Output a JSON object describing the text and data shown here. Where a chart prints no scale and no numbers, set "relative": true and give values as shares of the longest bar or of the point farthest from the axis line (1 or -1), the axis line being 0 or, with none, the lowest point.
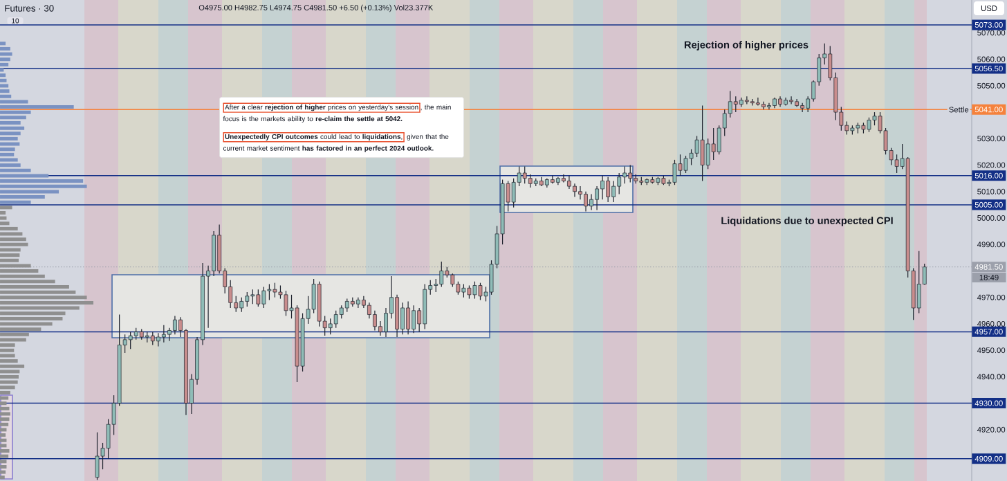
{
  "chart_data": [
    {
      "type": "candlestick",
      "title": "Futures · 30",
      "subtitle": "O4975.00 H4982.75 L4974.75 C4981.50 +6.50 (+0.13%) Vol23.377K",
      "categories": [
        null,
        null,
        null,
        null,
        null,
        null,
        null,
        null,
        null,
        null,
        null,
        null,
        null,
        null,
        null,
        null,
        null,
        null,
        null,
        null,
        null,
        null,
        null,
        null,
        null,
        null,
        null,
        null,
        null,
        null,
        null,
        null,
        null,
        null,
        null,
        null,
        null,
        null,
        null,
        null,
        null,
        null,
        null,
        null,
        null,
        null,
        null,
        null,
        null,
        null,
        null,
        null,
        null,
        null,
        null,
        null,
        null,
        null,
        null,
        null,
        null,
        null,
        null,
        null,
        null,
        null,
        null,
        null,
        null,
        null,
        null,
        null,
        null,
        null,
        null,
        null,
        null,
        null,
        null,
        null,
        null,
        null,
        null,
        null,
        null,
        null,
        null,
        null,
        null,
        null,
        null,
        null,
        null,
        null,
        null,
        null,
        null,
        null,
        null,
        null,
        null,
        null,
        null,
        null,
        null,
        null,
        null,
        null,
        null,
        null,
        null,
        null,
        null,
        null,
        null,
        null,
        null,
        null,
        null,
        null,
        null,
        null,
        null,
        null,
        null,
        null,
        null,
        null,
        null,
        null,
        null,
        null,
        null,
        null,
        null,
        null,
        null,
        null,
        null,
        null,
        null,
        null,
        null,
        null,
        null,
        null,
        null,
        null,
        null,
        null,
        null,
        null,
        null,
        null,
        null,
        null,
        null,
        null,
        null,
        null,
        null,
        null,
        null,
        null,
        null,
        null,
        null,
        null,
        null,
        null,
        null,
        null,
        null,
        null,
        null
      ],
      "ohlc": [
        null,
        null,
        null,
        null,
        null,
        null,
        null,
        null,
        null,
        null,
        null,
        null,
        null,
        null,
        null,
        null,
        null,
        [
          4902,
          4919,
          4901,
          4910
        ],
        [
          4910,
          4915,
          4905,
          4913
        ],
        [
          4913,
          4924,
          4909,
          4922
        ],
        [
          4922,
          4933,
          4918,
          4930
        ],
        [
          4930,
          4963.5,
          4929,
          4952
        ],
        [
          4952,
          4956,
          4949,
          4954
        ],
        [
          4954,
          4957,
          4950.5,
          4955.5
        ],
        [
          4955.5,
          4958.5,
          4954,
          4957
        ],
        [
          4957,
          4958,
          4954,
          4955
        ],
        [
          4955,
          4957,
          4953,
          4955.5
        ],
        [
          4955.5,
          4957,
          4952,
          4953.5
        ],
        [
          4953.5,
          4956.5,
          4951.5,
          4955
        ],
        [
          4955,
          4959.5,
          4953,
          4956
        ],
        [
          4956,
          4958.5,
          4953.5,
          4957.5
        ],
        [
          4957.5,
          4963,
          4956,
          4961.5
        ],
        [
          4961.5,
          4962.5,
          4955,
          4957.5
        ],
        [
          4957.5,
          4958,
          4925.5,
          4930
        ],
        [
          4930,
          4941,
          4926,
          4939
        ],
        [
          4939,
          4955,
          4937,
          4954
        ],
        [
          4954,
          4983,
          4952,
          4978
        ],
        [
          4978,
          4982,
          4958.5,
          4980
        ],
        [
          4980,
          4995,
          4978,
          4993.5
        ],
        [
          4993.5,
          4997.5,
          4979,
          4980
        ],
        [
          4980,
          4981,
          4971.5,
          4974
        ],
        [
          4974,
          4976.5,
          4966,
          4968
        ],
        [
          4968,
          4970.5,
          4964.5,
          4966
        ],
        [
          4966,
          4970,
          4964.5,
          4968.5
        ],
        [
          4968.5,
          4972,
          4966.5,
          4970.5
        ],
        [
          4970.5,
          4973,
          4967.5,
          4971
        ],
        [
          4971,
          4973,
          4966.5,
          4967.5
        ],
        [
          4967.5,
          4974,
          4966,
          4972.5
        ],
        [
          4972.5,
          4975,
          4969,
          4973
        ],
        [
          4973,
          4975.5,
          4970,
          4972
        ],
        [
          4972,
          4974.5,
          4969.5,
          4971
        ],
        [
          4971,
          4972.5,
          4963,
          4965
        ],
        [
          4965,
          4971,
          4962,
          4966
        ],
        [
          4966,
          4967,
          4938,
          4944
        ],
        [
          4944,
          4964,
          4942,
          4962
        ],
        [
          4962,
          4970.5,
          4960,
          4965.5
        ],
        [
          4965.5,
          4977,
          4964,
          4975
        ],
        [
          4975,
          4976,
          4959,
          4961
        ],
        [
          4961,
          4963,
          4955.5,
          4958.5
        ],
        [
          4958.5,
          4962,
          4956,
          4960
        ],
        [
          4960,
          4965,
          4958.5,
          4963.5
        ],
        [
          4963.5,
          4967,
          4962,
          4966
        ],
        [
          4966,
          4969.5,
          4964.5,
          4968.5
        ],
        [
          4968.5,
          4970,
          4966.5,
          4967.5
        ],
        [
          4967.5,
          4970,
          4966,
          4969
        ],
        [
          4969,
          4970.5,
          4966,
          4967
        ],
        [
          4967,
          4968,
          4962,
          4963.5
        ],
        [
          4963.5,
          4965,
          4957.5,
          4959
        ],
        [
          4959,
          4961,
          4955.5,
          4957
        ],
        [
          4957,
          4966,
          4955,
          4964
        ],
        [
          4964,
          4978,
          4962,
          4970
        ],
        [
          4970,
          4971,
          4955,
          4958
        ],
        [
          4958,
          4968,
          4956,
          4966
        ],
        [
          4966,
          4968.5,
          4956,
          4958
        ],
        [
          4958,
          4967,
          4956.5,
          4965
        ],
        [
          4965,
          4966,
          4957,
          4960
        ],
        [
          4960,
          4975,
          4958,
          4973
        ],
        [
          4973,
          4976.5,
          4971,
          4974.5
        ],
        [
          4974.5,
          4977,
          4972,
          4975
        ],
        [
          4975,
          4983.5,
          4974,
          4980
        ],
        [
          4980,
          4981.5,
          4977.5,
          4978.5
        ],
        [
          4978.5,
          4979,
          4974,
          4975
        ],
        [
          4975,
          4976,
          4971,
          4972
        ],
        [
          4972,
          4975,
          4970,
          4973.5
        ],
        [
          4973.5,
          4974.5,
          4969.5,
          4971
        ],
        [
          4971,
          4976,
          4969.5,
          4974.5
        ],
        [
          4974.5,
          4975.5,
          4969,
          4970.5
        ],
        [
          4970.5,
          4974,
          4968.5,
          4972
        ],
        [
          4972,
          4984,
          4971,
          4982.5
        ],
        [
          4982.5,
          4997,
          4981,
          4994
        ],
        [
          4994,
          5014.5,
          4990,
          5013
        ],
        [
          5013,
          5014,
          5002.5,
          5006
        ],
        [
          5006,
          5015,
          5004,
          5013.5
        ],
        [
          5013.5,
          5019.5,
          5012,
          5017
        ],
        [
          5017,
          5019.5,
          5013,
          5015
        ],
        [
          5015,
          5016.5,
          5011.5,
          5013
        ],
        [
          5013,
          5015,
          5012,
          5014
        ],
        [
          5014,
          5015.5,
          5012,
          5012.5
        ],
        [
          5012.5,
          5015,
          5011.5,
          5014.5
        ],
        [
          5014.5,
          5016,
          5013,
          5013.5
        ],
        [
          5013.5,
          5015.5,
          5012.5,
          5015
        ],
        [
          5015,
          5016.5,
          5013.5,
          5014
        ],
        [
          5014,
          5016,
          5011,
          5012
        ],
        [
          5012,
          5013,
          5008,
          5010
        ],
        [
          5010,
          5012,
          5007,
          5009
        ],
        [
          5009,
          5010,
          5002.5,
          5004.5
        ],
        [
          5004.5,
          5009,
          5003,
          5007
        ],
        [
          5007,
          5012,
          5003,
          5011
        ],
        [
          5011,
          5016,
          5007,
          5014
        ],
        [
          5014,
          5015.5,
          5006,
          5008
        ],
        [
          5008,
          5014,
          5006,
          5012
        ],
        [
          5012,
          5017,
          5009,
          5015.5
        ],
        [
          5015.5,
          5019.5,
          5013,
          5017
        ],
        [
          5017,
          5020,
          5013.5,
          5015
        ],
        [
          5015,
          5016.5,
          5013,
          5014
        ],
        [
          5014,
          5015.5,
          5012.5,
          5013.5
        ],
        [
          5013.5,
          5015,
          5012.5,
          5014.5
        ],
        [
          5014.5,
          5015.5,
          5013,
          5013.5
        ],
        [
          5013.5,
          5015.5,
          5012.5,
          5015
        ],
        [
          5015,
          5016,
          5012.5,
          5013
        ],
        [
          5013,
          5014.5,
          5012,
          5013.5
        ],
        [
          5013.5,
          5022,
          5012.5,
          5020.5
        ],
        [
          5020.5,
          5024,
          5016,
          5018
        ],
        [
          5018,
          5023.5,
          5017,
          5022.5
        ],
        [
          5022.5,
          5026,
          5020,
          5024.5
        ],
        [
          5024.5,
          5031,
          5023,
          5029.5
        ],
        [
          5029.5,
          5042.5,
          5014,
          5020
        ],
        [
          5020,
          5030,
          5018.5,
          5028
        ],
        [
          5028,
          5034,
          5022,
          5025
        ],
        [
          5025,
          5035,
          5024,
          5034
        ],
        [
          5034,
          5041,
          5031,
          5039.5
        ],
        [
          5039.5,
          5048,
          5038,
          5044
        ],
        [
          5044,
          5046,
          5040,
          5043
        ],
        [
          5043,
          5045.5,
          5042,
          5044.5
        ],
        [
          5044.5,
          5046,
          5043,
          5044
        ],
        [
          5044,
          5045,
          5042.5,
          5043.5
        ],
        [
          5043.5,
          5045.5,
          5042.5,
          5043
        ],
        [
          5043,
          5044,
          5041,
          5042
        ],
        [
          5042,
          5043.5,
          5041,
          5042.5
        ],
        [
          5042.5,
          5045.5,
          5041.5,
          5045
        ],
        [
          5045,
          5046,
          5042,
          5043
        ],
        [
          5043,
          5045.5,
          5042.5,
          5044.5
        ],
        [
          5044.5,
          5046,
          5043,
          5044
        ],
        [
          5044,
          5045,
          5042,
          5042.5
        ],
        [
          5042.5,
          5043.5,
          5040,
          5041.5
        ],
        [
          5041.5,
          5046,
          5040,
          5045
        ],
        [
          5045,
          5052,
          5044,
          5051.5
        ],
        [
          5051.5,
          5062,
          5050,
          5060.5
        ],
        [
          5060.5,
          5066,
          5058,
          5062
        ],
        [
          5062,
          5065,
          5052,
          5053
        ],
        [
          5053,
          5055,
          5037,
          5040
        ],
        [
          5040,
          5042,
          5033,
          5035
        ],
        [
          5035,
          5036.5,
          5031.5,
          5033
        ],
        [
          5033,
          5035,
          5031.5,
          5034
        ],
        [
          5034,
          5036,
          5032,
          5035
        ],
        [
          5035,
          5036,
          5032,
          5033.5
        ],
        [
          5033.5,
          5038,
          5032.5,
          5037
        ],
        [
          5037,
          5040,
          5035,
          5038.5
        ],
        [
          5038.5,
          5040,
          5032,
          5033
        ],
        [
          5033,
          5034,
          5024,
          5025.5
        ],
        [
          5025.5,
          5026.5,
          5020,
          5022
        ],
        [
          5022,
          5024,
          5017,
          5019.5
        ],
        [
          5019.5,
          5028,
          5018.5,
          5022.5
        ],
        [
          5022.5,
          5023,
          4977.5,
          4980
        ],
        [
          4980,
          4981,
          4961.5,
          4966
        ],
        [
          4966,
          4987.5,
          4964,
          4975
        ],
        [
          4975,
          4982.75,
          4974.75,
          4981.5
        ],
        null,
        null,
        null,
        null,
        null,
        null,
        null,
        null
      ],
      "colors": [
        null,
        null,
        null,
        null,
        null,
        null,
        null,
        null,
        null,
        null,
        null,
        null,
        null,
        null,
        null,
        null,
        null,
        "#8fbcb7",
        "#8fbcb7",
        "#8fbcb7",
        "#8fbcb7",
        "#8fbcb7",
        "#8fbcb7",
        "#8fbcb7",
        "#8fbcb7",
        "#c98d8d",
        "#8fbcb7",
        "#c98d8d",
        "#8fbcb7",
        "#8fbcb7",
        "#8fbcb7",
        "#8fbcb7",
        "#c98d8d",
        "#c98d8d",
        "#8fbcb7",
        "#8fbcb7",
        "#8fbcb7",
        "#8fbcb7",
        "#8fbcb7",
        "#c98d8d",
        "#c98d8d",
        "#c98d8d",
        "#c98d8d",
        "#8fbcb7",
        "#8fbcb7",
        "#8fbcb7",
        "#c98d8d",
        "#8fbcb7",
        "#8fbcb7",
        "#c98d8d",
        "#c98d8d",
        "#c98d8d",
        "#8fbcb7",
        "#c98d8d",
        "#8fbcb7",
        "#8fbcb7",
        "#8fbcb7",
        "#c98d8d",
        "#c98d8d",
        "#8fbcb7",
        "#8fbcb7",
        "#8fbcb7",
        "#8fbcb7",
        "#c98d8d",
        "#8fbcb7",
        "#c98d8d",
        "#c98d8d",
        "#c98d8d",
        "#c98d8d",
        "#8fbcb7",
        "#8fbcb7",
        "#c98d8d",
        "#8fbcb7",
        "#c98d8d",
        "#8fbcb7",
        "#c98d8d",
        "#8fbcb7",
        "#8fbcb7",
        "#8fbcb7",
        "#8fbcb7",
        "#c98d8d",
        "#c98d8d",
        "#c98d8d",
        "#8fbcb7",
        "#c98d8d",
        "#8fbcb7",
        "#c98d8d",
        "#8fbcb7",
        "#8fbcb7",
        "#8fbcb7",
        "#8fbcb7",
        "#c98d8d",
        "#8fbcb7",
        "#8fbcb7",
        "#c98d8d",
        "#c98d8d",
        "#8fbcb7",
        "#c98d8d",
        "#8fbcb7",
        "#c98d8d",
        "#8fbcb7",
        "#c98d8d",
        "#c98d8d",
        "#c98d8d",
        "#c98d8d",
        "#c98d8d",
        "#8fbcb7",
        "#8fbcb7",
        "#8fbcb7",
        "#c98d8d",
        "#8fbcb7",
        "#8fbcb7",
        "#8fbcb7",
        "#c98d8d",
        "#c98d8d",
        "#c98d8d",
        "#8fbcb7",
        "#c98d8d",
        "#8fbcb7",
        "#c98d8d",
        "#8fbcb7",
        "#8fbcb7",
        "#c98d8d",
        "#8fbcb7",
        "#8fbcb7",
        "#8fbcb7",
        "#c98d8d",
        "#8fbcb7",
        "#c98d8d",
        "#8fbcb7",
        "#8fbcb7",
        "#8fbcb7",
        "#c98d8d",
        "#8fbcb7",
        "#c98d8d",
        "#c98d8d",
        "#c98d8d",
        "#c98d8d",
        "#8fbcb7",
        "#8fbcb7",
        "#c98d8d",
        "#8fbcb7",
        "#c98d8d",
        "#c98d8d",
        "#c98d8d",
        "#8fbcb7",
        "#8fbcb7",
        "#8fbcb7",
        "#8fbcb7",
        "#c98d8d",
        "#c98d8d",
        "#c98d8d",
        "#c98d8d",
        "#8fbcb7",
        "#8fbcb7",
        "#c98d8d",
        "#8fbcb7",
        "#8fbcb7",
        "#c98d8d",
        "#c98d8d",
        "#c98d8d",
        "#c98d8d",
        "#8fbcb7",
        "#c98d8d",
        "#c98d8d",
        "#8fbcb7",
        "#8fbcb7",
        null,
        null,
        null,
        null,
        null,
        null,
        null,
        null
      ],
      "ylim": [
        4900.6,
        5082.4
      ],
      "yticks": [
        {
          "value": 5070,
          "label": "5070.00"
        },
        {
          "value": 5060,
          "label": "5060.00"
        },
        {
          "value": 5050,
          "label": "5050.00"
        },
        {
          "value": 5030,
          "label": "5030.00"
        },
        {
          "value": 5020,
          "label": "5020.00"
        },
        {
          "value": 5010,
          "label": "5010.00"
        },
        {
          "value": 5000,
          "label": "5000.00"
        },
        {
          "value": 4990,
          "label": "4990.00"
        },
        {
          "value": 4970,
          "label": "4970.00"
        },
        {
          "value": 4960,
          "label": "4960.00"
        },
        {
          "value": 4950,
          "label": "4950.00"
        },
        {
          "value": 4940,
          "label": "4940.00"
        },
        {
          "value": 4920,
          "label": "4920.00"
        }
      ],
      "ref_lines": [
        {
          "axis": "y",
          "value": 5073,
          "label": "5073.00",
          "color": "#132f86"
        },
        {
          "axis": "y",
          "value": 5056.5,
          "label": "5056.50",
          "color": "#132f86"
        },
        {
          "axis": "y",
          "value": 5041,
          "label": "5041.00",
          "color": "#f5823c"
        },
        {
          "axis": "y",
          "value": 5016,
          "label": "5016.00",
          "color": "#132f86"
        },
        {
          "axis": "y",
          "value": 5005,
          "label": "5005.00",
          "color": "#132f86"
        },
        {
          "axis": "y",
          "value": 4981.5,
          "label": "4981.50",
          "color": "#9ca0ab",
          "line_style": "dotted"
        },
        {
          "axis": "y",
          "value": 4957,
          "label": "4957.00",
          "color": "#132f86"
        },
        {
          "axis": "y",
          "value": 4930,
          "label": "4930.00",
          "color": "#132f86"
        },
        {
          "axis": "y",
          "value": 4909,
          "label": "4909.00",
          "color": "#132f86"
        }
      ],
      "annotations": [
        "Rejection of higher prices",
        "Liquidations due to unexpected CPI",
        {
          "text": "Settle",
          "y": 5041
        },
        "18:49",
        "USD",
        "10",
        "After a clear **rejection of higher** prices on yesterday's session",
        ", the main focus is the markets ability to **re-claim the settle at 5042.**",
        "**Unexpectedly CPI outcomes** could lead to **liquidations**,",
        "given that the current market sentiment **has factored in an perfect 2024 outlook.**"
      ]
    },
    {
      "type": "bar",
      "orientation": "horizontal",
      "relative": true,
      "categories": [
        null,
        null,
        null,
        null,
        null,
        null,
        null,
        null,
        null,
        null,
        null,
        null,
        null,
        null,
        null,
        null,
        null,
        null,
        null,
        null,
        null,
        null,
        null,
        null,
        null,
        null,
        null,
        null,
        null,
        null,
        null,
        null,
        null,
        null,
        null,
        null,
        null,
        null,
        null,
        null,
        null,
        null,
        null,
        null,
        null,
        null,
        null,
        null,
        null,
        null,
        null,
        null,
        null,
        null,
        null,
        null,
        null,
        null,
        null,
        null,
        null,
        null,
        null,
        null,
        null,
        null,
        null,
        null,
        null,
        null,
        null,
        null,
        null,
        null,
        null,
        null,
        null,
        null,
        null,
        null,
        null,
        null,
        null
      ],
      "values": [
        0.06,
        0.11,
        0.13,
        0.11,
        0.09,
        0.04,
        0.06,
        0.07,
        0.09,
        0.1,
        0.12,
        0.3,
        0.79,
        0.33,
        0.28,
        0.22,
        0.26,
        0.22,
        0.19,
        0.21,
        0.16,
        0.15,
        0.19,
        0.22,
        0.33,
        0.52,
        0.89,
        0.93,
        0.63,
        0.48,
        0.33,
        0.13,
        0.06,
        0.07,
        0.1,
        0.19,
        0.24,
        0.28,
        0.3,
        0.22,
        0.21,
        0.2,
        0.33,
        0.41,
        0.48,
        0.59,
        0.74,
        0.81,
        0.93,
        1,
        0.85,
        0.7,
        0.67,
        0.56,
        0.44,
        0.31,
        0.28,
        0.16,
        0.15,
        0.16,
        0.19,
        0.26,
        0.21,
        0.2,
        0.19,
        0.16,
        0.11,
        0.09,
        0.07,
        0.1,
        0.11,
        0.1,
        0.09,
        0.07,
        0.06,
        0.07,
        0.07,
        0.1,
        0.09,
        0.07,
        0.07,
        0.06,
        0.05
      ],
      "colors": [
        "#7a92c2",
        "#7a92c2",
        "#7a92c2",
        "#7a92c2",
        "#7a92c2",
        "#7a92c2",
        "#7a92c2",
        "#7a92c2",
        "#7a92c2",
        "#7a92c2",
        "#7a92c2",
        "#7a92c2",
        "#7a92c2",
        "#7a92c2",
        "#7a92c2",
        "#7a92c2",
        "#7a92c2",
        "#7a92c2",
        "#7a92c2",
        "#7a92c2",
        "#7a92c2",
        "#7a92c2",
        "#7a92c2",
        "#7a92c2",
        "#7a92c2",
        "#7a92c2",
        "#7a92c2",
        "#7a92c2",
        "#7a92c2",
        "#7a92c2",
        "#7a92c2",
        "#8f8f8f",
        "#8f8f8f",
        "#8f8f8f",
        "#8f8f8f",
        "#8f8f8f",
        "#8f8f8f",
        "#8f8f8f",
        "#8f8f8f",
        "#8f8f8f",
        "#8f8f8f",
        "#8f8f8f",
        "#8f8f8f",
        "#8f8f8f",
        "#8f8f8f",
        "#8f8f8f",
        "#8f8f8f",
        "#8f8f8f",
        "#8f8f8f",
        "#8f8f8f",
        "#8f8f8f",
        "#8f8f8f",
        "#8f8f8f",
        "#8f8f8f",
        "#8f8f8f",
        "#8f8f8f",
        "#8f8f8f",
        "#8f8f8f",
        "#8f8f8f",
        "#8f8f8f",
        "#8f8f8f",
        "#8f8f8f",
        "#8f8f8f",
        "#8f8f8f",
        "#8f8f8f",
        "#8f8f8f",
        "#8f8f8f",
        "#8f8f8f",
        "#8f8f8f",
        "#8f8f8f",
        "#8f8f8f",
        "#8f8f8f",
        "#8f8f8f",
        "#8f8f8f",
        "#8f8f8f",
        "#8f8f8f",
        "#8f8f8f",
        "#8f8f8f",
        "#8f8f8f",
        "#8f8f8f",
        "#8f8f8f",
        "#8f8f8f",
        "#8f8f8f"
      ]
    }
  ]
}
